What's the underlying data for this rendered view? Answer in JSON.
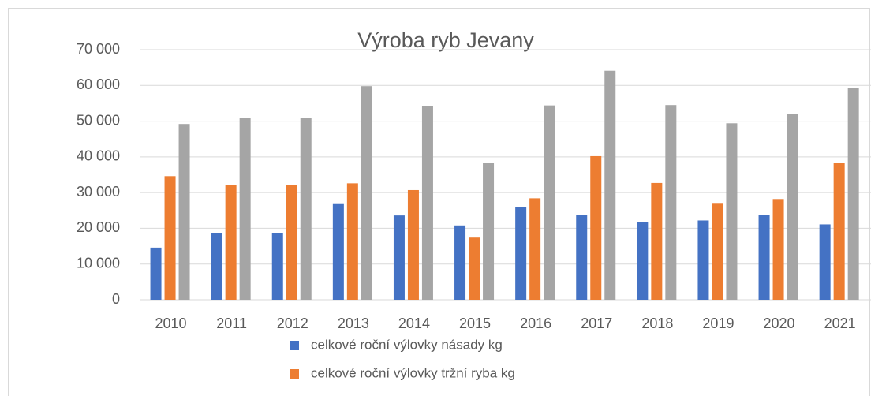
{
  "chart_data": {
    "type": "bar",
    "title": "Výroba ryb Jevany",
    "categories": [
      "2010",
      "2011",
      "2012",
      "2013",
      "2014",
      "2015",
      "2016",
      "2017",
      "2018",
      "2019",
      "2020",
      "2021"
    ],
    "series": [
      {
        "name": "celkové roční výlovky  násady kg",
        "color": "#4472c4",
        "values": [
          14600,
          18700,
          18700,
          27000,
          23600,
          20800,
          26000,
          23800,
          21800,
          22200,
          23800,
          21100
        ]
      },
      {
        "name": "celkové roční výlovky  tržní ryba kg",
        "color": "#ed7d31",
        "values": [
          34600,
          32200,
          32200,
          32600,
          30700,
          17400,
          28400,
          40200,
          32700,
          27100,
          28200,
          38300
        ]
      },
      {
        "color": "#a5a5a5",
        "values": [
          49200,
          51000,
          51000,
          59800,
          54300,
          38300,
          54400,
          64100,
          54500,
          49400,
          52100,
          59400
        ]
      }
    ],
    "ylim": [
      0,
      70000
    ],
    "yticks": [
      0,
      {
        "value": 10000,
        "label": "10 000"
      },
      {
        "value": 20000,
        "label": "20 000"
      },
      {
        "value": 30000,
        "label": "30 000"
      },
      {
        "value": 40000,
        "label": "40 000"
      },
      {
        "value": 50000,
        "label": "50 000"
      },
      {
        "value": 60000,
        "label": "60 000"
      },
      {
        "value": 70000,
        "label": "70 000"
      }
    ],
    "grid": true
  }
}
